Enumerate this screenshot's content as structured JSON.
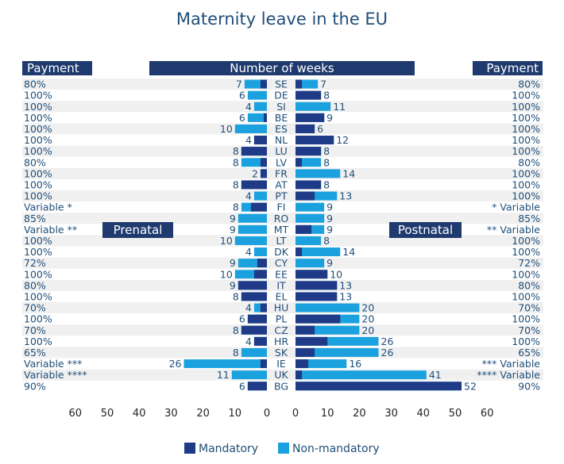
{
  "colors": {
    "mandatory": "#1f3a86",
    "non_mandatory": "#1ba1de",
    "header_bg": "#1f3a6e",
    "text": "#1f4e79",
    "stripe": "#f0f0f0"
  },
  "chart_data": {
    "type": "bar",
    "title": "Maternity  leave in the EU",
    "headers": {
      "payment_left": "Payment",
      "weeks": "Number of weeks",
      "payment_right": "Payment"
    },
    "side_labels": {
      "left": "Prenatal",
      "right": "Postnatal"
    },
    "legend": [
      "Mandatory",
      "Non-mandatory"
    ],
    "xlim": [
      0,
      60
    ],
    "ticks_left": [
      "60",
      "50",
      "40",
      "30",
      "20",
      "10",
      "0"
    ],
    "ticks_right": [
      "0",
      "10",
      "20",
      "30",
      "40",
      "50",
      "60"
    ],
    "rows": [
      {
        "country": "SE",
        "pay_left": "80%",
        "pay_right": "80%",
        "pre": 7,
        "pre_mand": 2,
        "post": 7,
        "post_mand": 2
      },
      {
        "country": "DE",
        "pay_left": "100%",
        "pay_right": "100%",
        "pre": 6,
        "pre_mand": 0,
        "post": 8,
        "post_mand": 8
      },
      {
        "country": "SI",
        "pay_left": "100%",
        "pay_right": "100%",
        "pre": 4,
        "pre_mand": 0,
        "post": 11,
        "post_mand": 0
      },
      {
        "country": "BE",
        "pay_left": "100%",
        "pay_right": "100%",
        "pre": 6,
        "pre_mand": 1,
        "post": 9,
        "post_mand": 9
      },
      {
        "country": "ES",
        "pay_left": "100%",
        "pay_right": "100%",
        "pre": 10,
        "pre_mand": 0,
        "post": 6,
        "post_mand": 6
      },
      {
        "country": "NL",
        "pay_left": "100%",
        "pay_right": "100%",
        "pre": 4,
        "pre_mand": 4,
        "post": 12,
        "post_mand": 12
      },
      {
        "country": "LU",
        "pay_left": "100%",
        "pay_right": "100%",
        "pre": 8,
        "pre_mand": 8,
        "post": 8,
        "post_mand": 8
      },
      {
        "country": "LV",
        "pay_left": "80%",
        "pay_right": "80%",
        "pre": 8,
        "pre_mand": 2,
        "post": 8,
        "post_mand": 2
      },
      {
        "country": "FR",
        "pay_left": "100%",
        "pay_right": "100%",
        "pre": 2,
        "pre_mand": 2,
        "post": 14,
        "post_mand": 0
      },
      {
        "country": "AT",
        "pay_left": "100%",
        "pay_right": "100%",
        "pre": 8,
        "pre_mand": 8,
        "post": 8,
        "post_mand": 8
      },
      {
        "country": "PT",
        "pay_left": "100%",
        "pay_right": "100%",
        "pre": 4,
        "pre_mand": 0,
        "post": 13,
        "post_mand": 6
      },
      {
        "country": "FI",
        "pay_left": "Variable *",
        "pay_right": "* Variable",
        "pre": 8,
        "pre_mand": 5,
        "post": 9,
        "post_mand": 0
      },
      {
        "country": "RO",
        "pay_left": "85%",
        "pay_right": "85%",
        "pre": 9,
        "pre_mand": 0,
        "post": 9,
        "post_mand": 0
      },
      {
        "country": "MT",
        "pay_left": "Variable **",
        "pay_right": "** Variable",
        "pre": 9,
        "pre_mand": 0,
        "post": 9,
        "post_mand": 5
      },
      {
        "country": "LT",
        "pay_left": "100%",
        "pay_right": "100%",
        "pre": 10,
        "pre_mand": 0,
        "post": 8,
        "post_mand": 0
      },
      {
        "country": "DK",
        "pay_left": "100%",
        "pay_right": "100%",
        "pre": 4,
        "pre_mand": 0,
        "post": 14,
        "post_mand": 2
      },
      {
        "country": "CY",
        "pay_left": "72%",
        "pay_right": "72%",
        "pre": 9,
        "pre_mand": 3,
        "post": 9,
        "post_mand": 0
      },
      {
        "country": "EE",
        "pay_left": "100%",
        "pay_right": "100%",
        "pre": 10,
        "pre_mand": 4,
        "post": 10,
        "post_mand": 10
      },
      {
        "country": "IT",
        "pay_left": "80%",
        "pay_right": "80%",
        "pre": 9,
        "pre_mand": 9,
        "post": 13,
        "post_mand": 13
      },
      {
        "country": "EL",
        "pay_left": "100%",
        "pay_right": "100%",
        "pre": 8,
        "pre_mand": 8,
        "post": 13,
        "post_mand": 13
      },
      {
        "country": "HU",
        "pay_left": "70%",
        "pay_right": "70%",
        "pre": 4,
        "pre_mand": 2,
        "post": 20,
        "post_mand": 0
      },
      {
        "country": "PL",
        "pay_left": "100%",
        "pay_right": "100%",
        "pre": 6,
        "pre_mand": 6,
        "post": 20,
        "post_mand": 14
      },
      {
        "country": "CZ",
        "pay_left": "70%",
        "pay_right": "70%",
        "pre": 8,
        "pre_mand": 8,
        "post": 20,
        "post_mand": 6
      },
      {
        "country": "HR",
        "pay_left": "100%",
        "pay_right": "100%",
        "pre": 4,
        "pre_mand": 4,
        "post": 26,
        "post_mand": 10
      },
      {
        "country": "SK",
        "pay_left": "65%",
        "pay_right": "65%",
        "pre": 8,
        "pre_mand": 0,
        "post": 26,
        "post_mand": 6
      },
      {
        "country": "IE",
        "pay_left": "Variable ***",
        "pay_right": "*** Variable",
        "pre": 26,
        "pre_mand": 2,
        "post": 16,
        "post_mand": 4
      },
      {
        "country": "UK",
        "pay_left": "Variable ****",
        "pay_right": "**** Variable",
        "pre": 11,
        "pre_mand": 0,
        "post": 41,
        "post_mand": 2
      },
      {
        "country": "BG",
        "pay_left": "90%",
        "pay_right": "90%",
        "pre": 6,
        "pre_mand": 6,
        "post": 52,
        "post_mand": 52
      }
    ]
  }
}
